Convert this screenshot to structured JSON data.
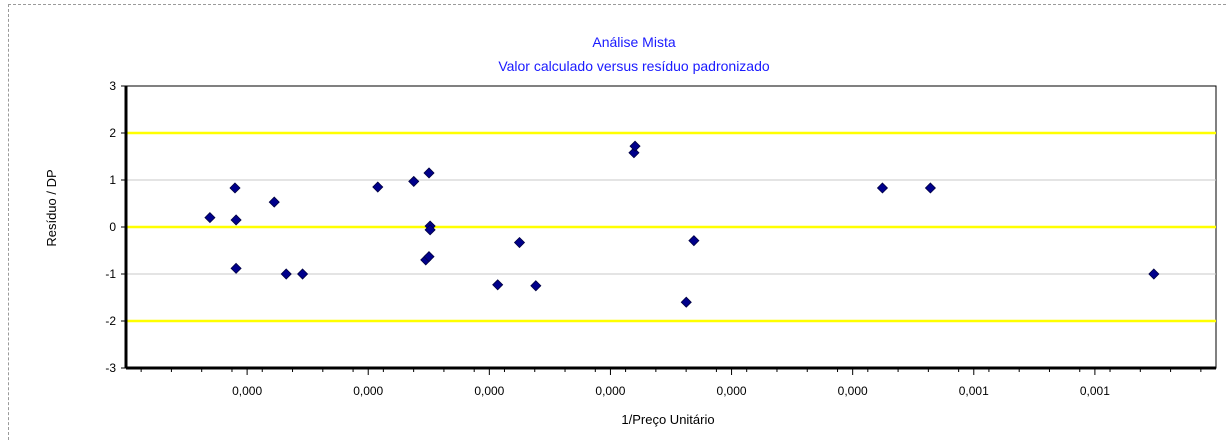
{
  "chart_data": {
    "type": "scatter",
    "title": "Análise Mista",
    "subtitle": "Valor calculado versus resíduo padronizado",
    "xlabel": "1/Preço Unitário",
    "ylabel": "Resíduo / DP",
    "xlim": [
      0,
      1
    ],
    "ylim": [
      -3,
      3
    ],
    "x_tick_labels": [
      "0,000",
      "0,000",
      "0,000",
      "0,000",
      "0,000",
      "0,000",
      "0,001",
      "0,001"
    ],
    "y_ticks": [
      -3,
      -2,
      -1,
      0,
      1,
      2,
      3
    ],
    "y_tick_labels": [
      "-3",
      "-2",
      "-1",
      "0",
      "1",
      "2",
      "3"
    ],
    "reference_lines": [
      {
        "y": 2,
        "color": "#ffff00"
      },
      {
        "y": 0,
        "color": "#ffff00"
      },
      {
        "y": -2,
        "color": "#ffff00"
      }
    ],
    "grid_lines": [
      1,
      -1
    ],
    "grid": true,
    "marker_color": "#00008b",
    "points": [
      {
        "x": 0.077,
        "y": 0.2
      },
      {
        "x": 0.1,
        "y": 0.83
      },
      {
        "x": 0.101,
        "y": 0.15
      },
      {
        "x": 0.101,
        "y": -0.88
      },
      {
        "x": 0.136,
        "y": 0.53
      },
      {
        "x": 0.147,
        "y": -1.0
      },
      {
        "x": 0.162,
        "y": -1.0
      },
      {
        "x": 0.231,
        "y": 0.85
      },
      {
        "x": 0.264,
        "y": 0.97
      },
      {
        "x": 0.275,
        "y": -0.7
      },
      {
        "x": 0.278,
        "y": -0.63
      },
      {
        "x": 0.278,
        "y": 1.15
      },
      {
        "x": 0.279,
        "y": 0.02
      },
      {
        "x": 0.279,
        "y": -0.06
      },
      {
        "x": 0.341,
        "y": -1.23
      },
      {
        "x": 0.361,
        "y": -0.33
      },
      {
        "x": 0.376,
        "y": -1.25
      },
      {
        "x": 0.466,
        "y": 1.58
      },
      {
        "x": 0.467,
        "y": 1.72
      },
      {
        "x": 0.514,
        "y": -1.6
      },
      {
        "x": 0.521,
        "y": -0.29
      },
      {
        "x": 0.694,
        "y": 0.83
      },
      {
        "x": 0.738,
        "y": 0.83
      },
      {
        "x": 0.943,
        "y": -1.0
      }
    ]
  }
}
